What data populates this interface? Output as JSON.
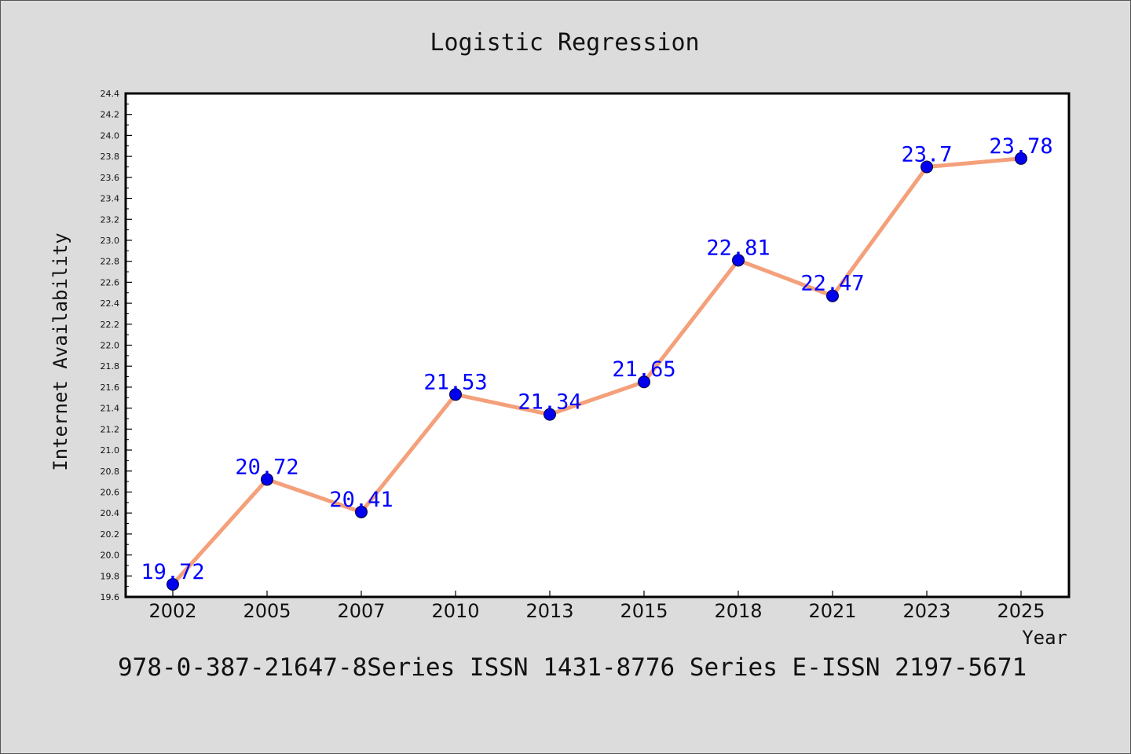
{
  "chart_data": {
    "type": "line",
    "title": "Logistic Regression",
    "xlabel": "Year",
    "ylabel": "Internet Availability",
    "categories": [
      "2002",
      "2005",
      "2007",
      "2010",
      "2013",
      "2015",
      "2018",
      "2021",
      "2023",
      "2025"
    ],
    "series": [
      {
        "values": [
          19.72,
          20.72,
          20.41,
          21.53,
          21.34,
          21.65,
          22.81,
          22.47,
          23.7,
          23.78
        ],
        "labels": [
          "19.72",
          "20.72",
          "20.41",
          "21.53",
          "21.34",
          "21.65",
          "22.81",
          "22.47",
          "23.7",
          "23.78"
        ],
        "line_color": "#f4a07a",
        "marker_color": "#0000ee",
        "label_color": "#0000ff"
      }
    ],
    "ylim": [
      19.6,
      24.4
    ],
    "yticks": [
      "19.6",
      "19.8",
      "20.0",
      "20.2",
      "20.4",
      "20.6",
      "20.8",
      "21.0",
      "21.2",
      "21.4",
      "21.6",
      "21.8",
      "22.0",
      "22.2",
      "22.4",
      "22.6",
      "22.8",
      "23.0",
      "23.2",
      "23.4",
      "23.6",
      "23.8",
      "24.0",
      "24.2",
      "24.4"
    ],
    "grid": false,
    "legend": "none"
  },
  "footer": {
    "text": "978-0-387-21647-8Series ISSN 1431-8776 Series E-ISSN 2197-5671"
  }
}
